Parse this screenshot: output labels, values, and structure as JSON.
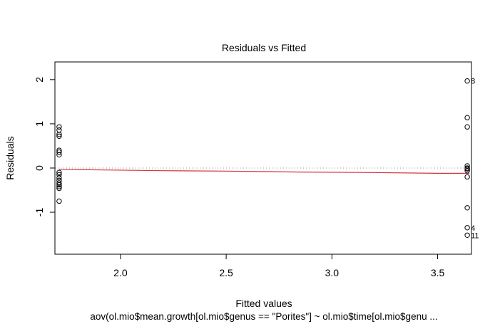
{
  "chart_data": {
    "type": "scatter",
    "title": "Residuals vs Fitted",
    "xlabel": "Fitted values",
    "ylabel": "Residuals",
    "subtitle": "aov(ol.mio$mean.growth[ol.mio$genus == \"Porites\"] ~ ol.mio$time[ol.mio$genu ...",
    "xlim": [
      1.69,
      3.66
    ],
    "ylim": [
      -1.95,
      2.4
    ],
    "xticks": [
      {
        "value": 2.0,
        "label": "2.0"
      },
      {
        "value": 2.5,
        "label": "2.5"
      },
      {
        "value": 3.0,
        "label": "3.0"
      },
      {
        "value": 3.5,
        "label": "3.5"
      }
    ],
    "yticks": [
      {
        "value": -1,
        "label": "-1"
      },
      {
        "value": 0,
        "label": "0"
      },
      {
        "value": 1,
        "label": "1"
      },
      {
        "value": 2,
        "label": "2"
      }
    ],
    "reference_line": {
      "y": 0,
      "style": "dotted",
      "color": "#999999"
    },
    "smooth": {
      "color": "#d0323c",
      "x": [
        1.71,
        1.85,
        2.2,
        2.5,
        2.85,
        3.15,
        3.5,
        3.65
      ],
      "y": [
        -0.03,
        -0.04,
        -0.06,
        -0.07,
        -0.09,
        -0.1,
        -0.12,
        -0.12
      ]
    },
    "points": {
      "x": [
        1.71,
        1.71,
        1.71,
        1.71,
        1.71,
        1.71,
        1.71,
        1.71,
        1.71,
        1.71,
        1.71,
        1.71,
        1.71,
        1.71,
        1.71,
        1.71,
        3.64,
        3.64,
        3.64,
        3.64,
        3.64,
        3.64,
        3.64,
        3.64,
        3.64,
        3.64,
        3.64
      ],
      "y": [
        0.93,
        0.86,
        0.76,
        0.72,
        0.4,
        0.36,
        0.3,
        -0.1,
        -0.15,
        -0.22,
        -0.28,
        -0.34,
        -0.38,
        -0.42,
        -0.46,
        -0.75,
        1.97,
        1.14,
        0.93,
        0.05,
        -0.02,
        -0.06,
        -0.2,
        -0.9,
        -1.35,
        -1.52,
        -0.0
      ]
    },
    "point_labels": [
      {
        "text": "8",
        "x": 3.64,
        "y": 1.97
      },
      {
        "text": "4",
        "x": 3.64,
        "y": -1.35
      },
      {
        "text": "11",
        "x": 3.64,
        "y": -1.52
      }
    ]
  }
}
